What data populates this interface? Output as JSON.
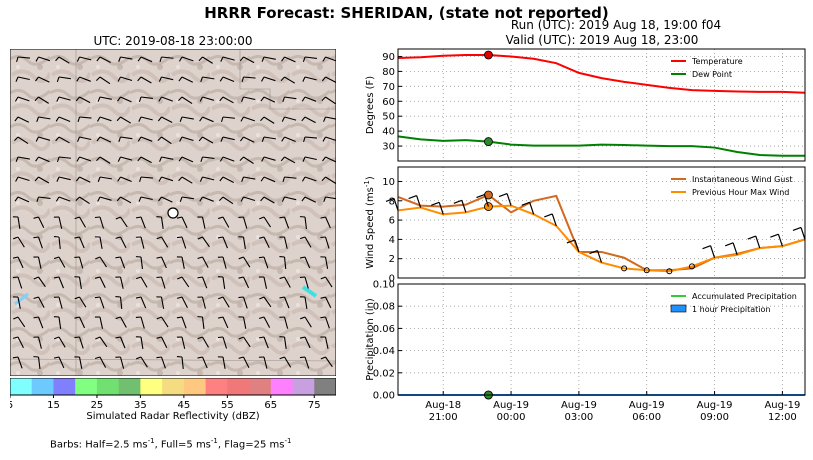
{
  "figure": {
    "title": "HRRR Forecast: SHERIDAN, (state not reported)",
    "run_line": "Run (UTC): 2019 Aug 18, 19:00 f04",
    "valid_line": "Valid (UTC): 2019 Aug 18, 23:00"
  },
  "map": {
    "title": "UTC: 2019-08-18 23:00:00",
    "colorbar": {
      "label": "Simulated Radar Reflectivity (dBZ)",
      "ticks": [
        "5",
        "15",
        "25",
        "35",
        "45",
        "55",
        "65",
        "75"
      ],
      "colors": [
        "#80ffff",
        "#6ccaff",
        "#8080ff",
        "#80ff80",
        "#70e070",
        "#70c070",
        "#ffff80",
        "#f5dc80",
        "#ffc880",
        "#ff8080",
        "#f07878",
        "#e08080",
        "#ff80ff",
        "#c8a0e0",
        "#808080"
      ]
    },
    "barbs_note_prefix": "Barbs: Half=2.5 ms",
    "barbs_note_mid1": ", Full=5 ms",
    "barbs_note_mid2": ", Flag=25 ms",
    "barbs_note_sup": "-1"
  },
  "chart_data": [
    {
      "type": "line",
      "ylabel": "Degrees (F)",
      "ylim": [
        20,
        95
      ],
      "yticks": [
        "30",
        "40",
        "50",
        "60",
        "70",
        "80",
        "90"
      ],
      "x_hours": [
        19,
        20,
        21,
        22,
        23,
        24,
        25,
        26,
        27,
        28,
        29,
        30,
        31,
        32,
        33,
        34,
        35,
        36,
        37
      ],
      "series": [
        {
          "name": "Temperature",
          "color": "#ff0000",
          "values": [
            89,
            89.5,
            90.5,
            91,
            91,
            90,
            88.5,
            85.5,
            79,
            75.5,
            73,
            71,
            69,
            67.5,
            67,
            66.5,
            66.3,
            66.3,
            65.7
          ]
        },
        {
          "name": "Dew Point",
          "color": "#008000",
          "values": [
            36.5,
            34.5,
            33.5,
            34,
            33,
            31,
            30.3,
            30.3,
            30.3,
            31,
            30.7,
            30.3,
            30,
            30,
            29,
            26,
            24,
            23.5,
            23.5
          ]
        }
      ],
      "marker_hour": 23,
      "legend": "top-right"
    },
    {
      "type": "line",
      "ylabel": "Wind Speed (ms",
      "ylabel_sup": "-1",
      "ylabel_suffix": ")",
      "ylim": [
        0,
        11.5
      ],
      "yticks": [
        "0",
        "2",
        "4",
        "6",
        "8",
        "10"
      ],
      "x_hours": [
        19,
        20,
        21,
        22,
        23,
        24,
        25,
        26,
        27,
        28,
        29,
        30,
        31,
        32,
        33,
        34,
        35,
        36,
        37
      ],
      "series": [
        {
          "name": "Instantaneous Wind Gust",
          "color": "#d2691e",
          "values": [
            8.4,
            7.5,
            7.4,
            7.6,
            8.6,
            6.8,
            8.0,
            8.5,
            2.7,
            2.7,
            2.1,
            0.8,
            0.8,
            1.0,
            2.1,
            2.5,
            3.1,
            3.3,
            4.0
          ]
        },
        {
          "name": "Previous Hour Max Wind",
          "color": "#ff8c00",
          "values": [
            7.0,
            7.3,
            6.6,
            6.8,
            7.4,
            7.5,
            6.6,
            5.4,
            2.7,
            1.6,
            1.0,
            0.8,
            0.7,
            1.2,
            2.1,
            2.4,
            3.1,
            3.3,
            4.0
          ]
        }
      ],
      "marker_hour": 23,
      "legend": "top-right"
    },
    {
      "type": "line",
      "ylabel": "Precipitation (in)",
      "ylim": [
        0,
        0.1
      ],
      "yticks": [
        "0.00",
        "0.02",
        "0.04",
        "0.06",
        "0.08",
        "0.10"
      ],
      "x_hours": [
        19,
        20,
        21,
        22,
        23,
        24,
        25,
        26,
        27,
        28,
        29,
        30,
        31,
        32,
        33,
        34,
        35,
        36,
        37
      ],
      "series": [
        {
          "name": "Accumulated Precipitation",
          "color": "#32cd32",
          "values": [
            0,
            0,
            0,
            0,
            0,
            0,
            0,
            0,
            0,
            0,
            0,
            0,
            0,
            0,
            0,
            0,
            0,
            0,
            0
          ]
        },
        {
          "name": "1 hour Precipitation",
          "color": "#1e90ff",
          "values": [
            0,
            0,
            0,
            0,
            0,
            0,
            0,
            0,
            0,
            0,
            0,
            0,
            0,
            0,
            0,
            0,
            0,
            0,
            0
          ]
        }
      ],
      "marker_hour": 23,
      "legend": "top-right"
    }
  ],
  "x_axis": {
    "ticks": [
      {
        "hour": 21,
        "line1": "Aug-18",
        "line2": "21:00"
      },
      {
        "hour": 24,
        "line1": "Aug-19",
        "line2": "00:00"
      },
      {
        "hour": 27,
        "line1": "Aug-19",
        "line2": "03:00"
      },
      {
        "hour": 30,
        "line1": "Aug-19",
        "line2": "06:00"
      },
      {
        "hour": 33,
        "line1": "Aug-19",
        "line2": "09:00"
      },
      {
        "hour": 36,
        "line1": "Aug-19",
        "line2": "12:00"
      }
    ],
    "xlim": [
      19,
      37
    ]
  }
}
